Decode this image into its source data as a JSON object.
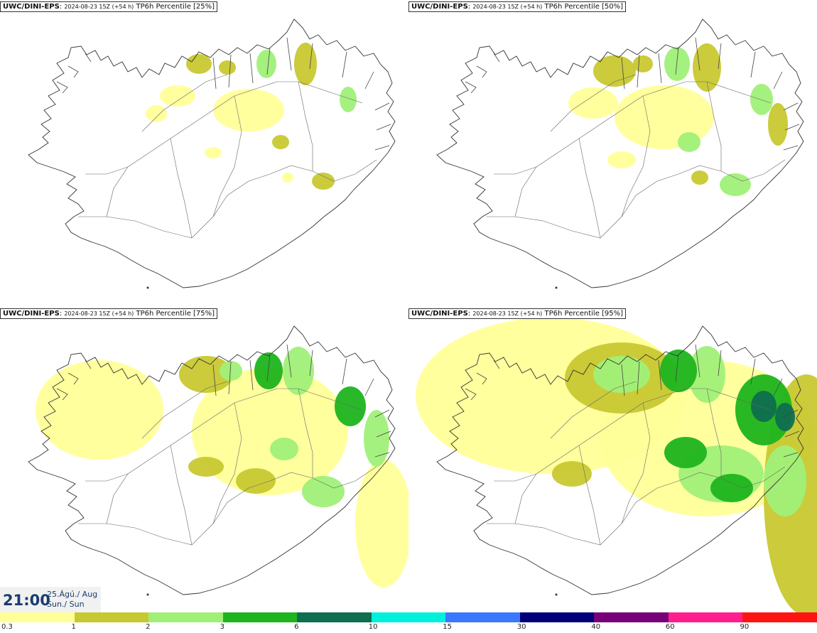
{
  "panels": [
    {
      "model": "UWC/DINI-EPS",
      "run": "2024-08-23 15Z (+54 h)",
      "product": "TP6h Percentile [25%]",
      "intensity": 1
    },
    {
      "model": "UWC/DINI-EPS",
      "run": "2024-08-23 15Z (+54 h)",
      "product": "TP6h Percentile [50%]",
      "intensity": 2
    },
    {
      "model": "UWC/DINI-EPS",
      "run": "2024-08-23 15Z (+54 h)",
      "product": "TP6h Percentile [75%]",
      "intensity": 3
    },
    {
      "model": "UWC/DINI-EPS",
      "run": "2024-08-23 15Z (+54 h)",
      "product": "TP6h Percentile [95%]",
      "intensity": 4
    }
  ],
  "valid_time": {
    "time": "21:00",
    "date_line1": "25.Ágú./ Aug",
    "date_line2": "Sun./ Sun"
  },
  "scale": {
    "labels": [
      "0.3",
      "1",
      "2",
      "3",
      "6",
      "10",
      "15",
      "30",
      "40",
      "60",
      "90"
    ],
    "colors": [
      "#ffff99",
      "#c8c832",
      "#a0f078",
      "#1eb41e",
      "#0f6e50",
      "#00f0dc",
      "#3c78ff",
      "#000078",
      "#780078",
      "#ff1e8c",
      "#ff1414"
    ]
  }
}
